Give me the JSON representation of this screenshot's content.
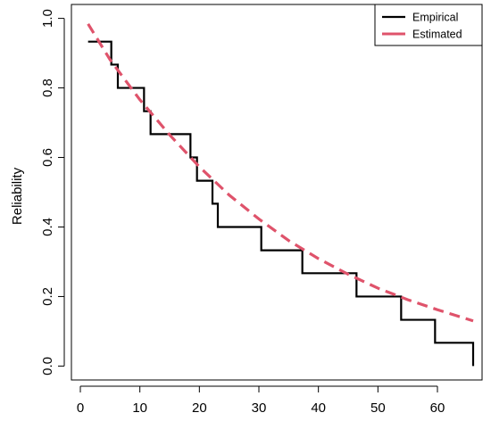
{
  "chart_data": {
    "type": "line",
    "title": "",
    "xlabel": "",
    "ylabel": "Reliability",
    "xlim": [
      -1.5,
      67.5
    ],
    "ylim": [
      -0.04,
      1.04
    ],
    "x_ticks": [
      0,
      10,
      20,
      30,
      40,
      50,
      60
    ],
    "y_ticks": [
      0.0,
      0.2,
      0.4,
      0.6,
      0.8,
      1.0
    ],
    "x_tick_labels": [
      "0",
      "10",
      "20",
      "30",
      "40",
      "50",
      "60"
    ],
    "y_tick_labels": [
      "0.0",
      "0.2",
      "0.4",
      "0.6",
      "0.8",
      "1.0"
    ],
    "grid": false,
    "legend_position": "top-right",
    "series": [
      {
        "name": "Empirical",
        "style": "step",
        "color": "#000000",
        "x": [
          1.3,
          5.2,
          6.3,
          10.7,
          11.8,
          18.5,
          19.6,
          22.2,
          23.1,
          30.4,
          37.3,
          46.4,
          53.9,
          59.6,
          66.0
        ],
        "y": [
          0.933,
          0.867,
          0.8,
          0.733,
          0.667,
          0.6,
          0.533,
          0.467,
          0.4,
          0.333,
          0.267,
          0.2,
          0.133,
          0.067,
          0.0
        ]
      },
      {
        "name": "Estimated",
        "style": "dashed",
        "color": "#DF536B",
        "x": [
          1.3,
          5,
          10,
          15,
          20,
          25,
          30,
          35,
          40,
          45,
          50,
          55,
          60,
          66
        ],
        "y": [
          0.984,
          0.881,
          0.766,
          0.665,
          0.573,
          0.492,
          0.423,
          0.361,
          0.309,
          0.264,
          0.224,
          0.191,
          0.162,
          0.13
        ]
      }
    ]
  }
}
